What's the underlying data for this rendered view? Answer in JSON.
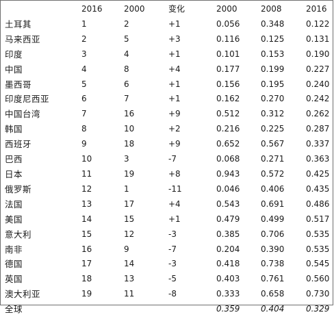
{
  "table": {
    "headers": [
      "",
      "2016",
      "2000",
      "变化",
      "2000",
      "2008",
      "2016"
    ],
    "rows": [
      [
        "土耳其",
        "1",
        "2",
        "+1",
        "0.056",
        "0.348",
        "0.122"
      ],
      [
        "马来西亚",
        "2",
        "5",
        "+3",
        "0.116",
        "0.125",
        "0.131"
      ],
      [
        "印度",
        "3",
        "4",
        "+1",
        "0.101",
        "0.153",
        "0.190"
      ],
      [
        "中国",
        "4",
        "8",
        "+4",
        "0.177",
        "0.199",
        "0.227"
      ],
      [
        "墨西哥",
        "5",
        "6",
        "+1",
        "0.156",
        "0.195",
        "0.240"
      ],
      [
        "印度尼西亚",
        "6",
        "7",
        "+1",
        "0.162",
        "0.270",
        "0.242"
      ],
      [
        "中国台湾",
        "7",
        "16",
        "+9",
        "0.512",
        "0.312",
        "0.262"
      ],
      [
        "韩国",
        "8",
        "10",
        "+2",
        "0.216",
        "0.225",
        "0.287"
      ],
      [
        "西班牙",
        "9",
        "18",
        "+9",
        "0.652",
        "0.567",
        "0.337"
      ],
      [
        "巴西",
        "10",
        "3",
        "-7",
        "0.068",
        "0.271",
        "0.363"
      ],
      [
        "日本",
        "11",
        "19",
        "+8",
        "0.943",
        "0.572",
        "0.425"
      ],
      [
        "俄罗斯",
        "12",
        "1",
        "-11",
        "0.046",
        "0.406",
        "0.435"
      ],
      [
        "法国",
        "13",
        "17",
        "+4",
        "0.543",
        "0.691",
        "0.486"
      ],
      [
        "美国",
        "14",
        "15",
        "+1",
        "0.479",
        "0.499",
        "0.517"
      ],
      [
        "意大利",
        "15",
        "12",
        "-3",
        "0.385",
        "0.706",
        "0.535"
      ],
      [
        "南非",
        "16",
        "9",
        "-7",
        "0.204",
        "0.390",
        "0.535"
      ],
      [
        "德国",
        "17",
        "14",
        "-3",
        "0.418",
        "0.738",
        "0.545"
      ],
      [
        "英国",
        "18",
        "13",
        "-5",
        "0.403",
        "0.761",
        "0.560"
      ],
      [
        "澳大利亚",
        "19",
        "11",
        "-8",
        "0.333",
        "0.658",
        "0.730"
      ]
    ],
    "total_row": [
      "全球",
      "",
      "",
      "",
      "0.359",
      "0.404",
      "0.329"
    ]
  }
}
